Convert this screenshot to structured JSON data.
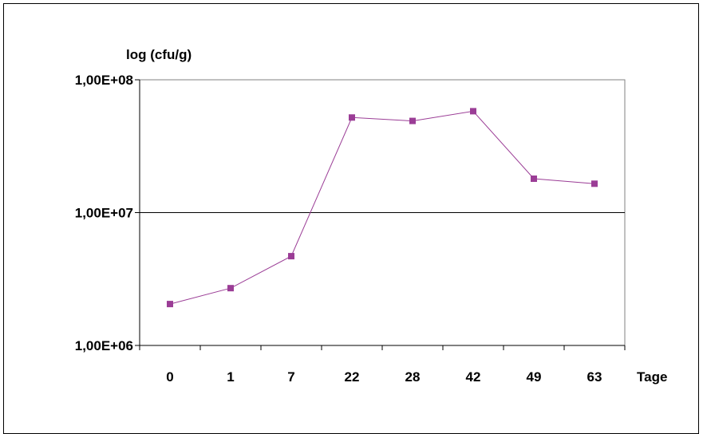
{
  "chart_data": {
    "type": "line",
    "ylabel": "log (cfu/g)",
    "xlabel": "Tage",
    "yscale": "log",
    "ylim": [
      1000000,
      100000000
    ],
    "ytick_labels": [
      "1,00E+06",
      "1,00E+07",
      "1,00E+08"
    ],
    "categories": [
      "0",
      "1",
      "7",
      "22",
      "28",
      "42",
      "49",
      "63"
    ],
    "series": [
      {
        "values": [
          2050000,
          2700000,
          4700000,
          52000000,
          49000000,
          58000000,
          18000000,
          16500000
        ],
        "color": "#9b3d96",
        "marker": "square"
      }
    ],
    "grid": {
      "horizontal_at_major": true
    }
  }
}
